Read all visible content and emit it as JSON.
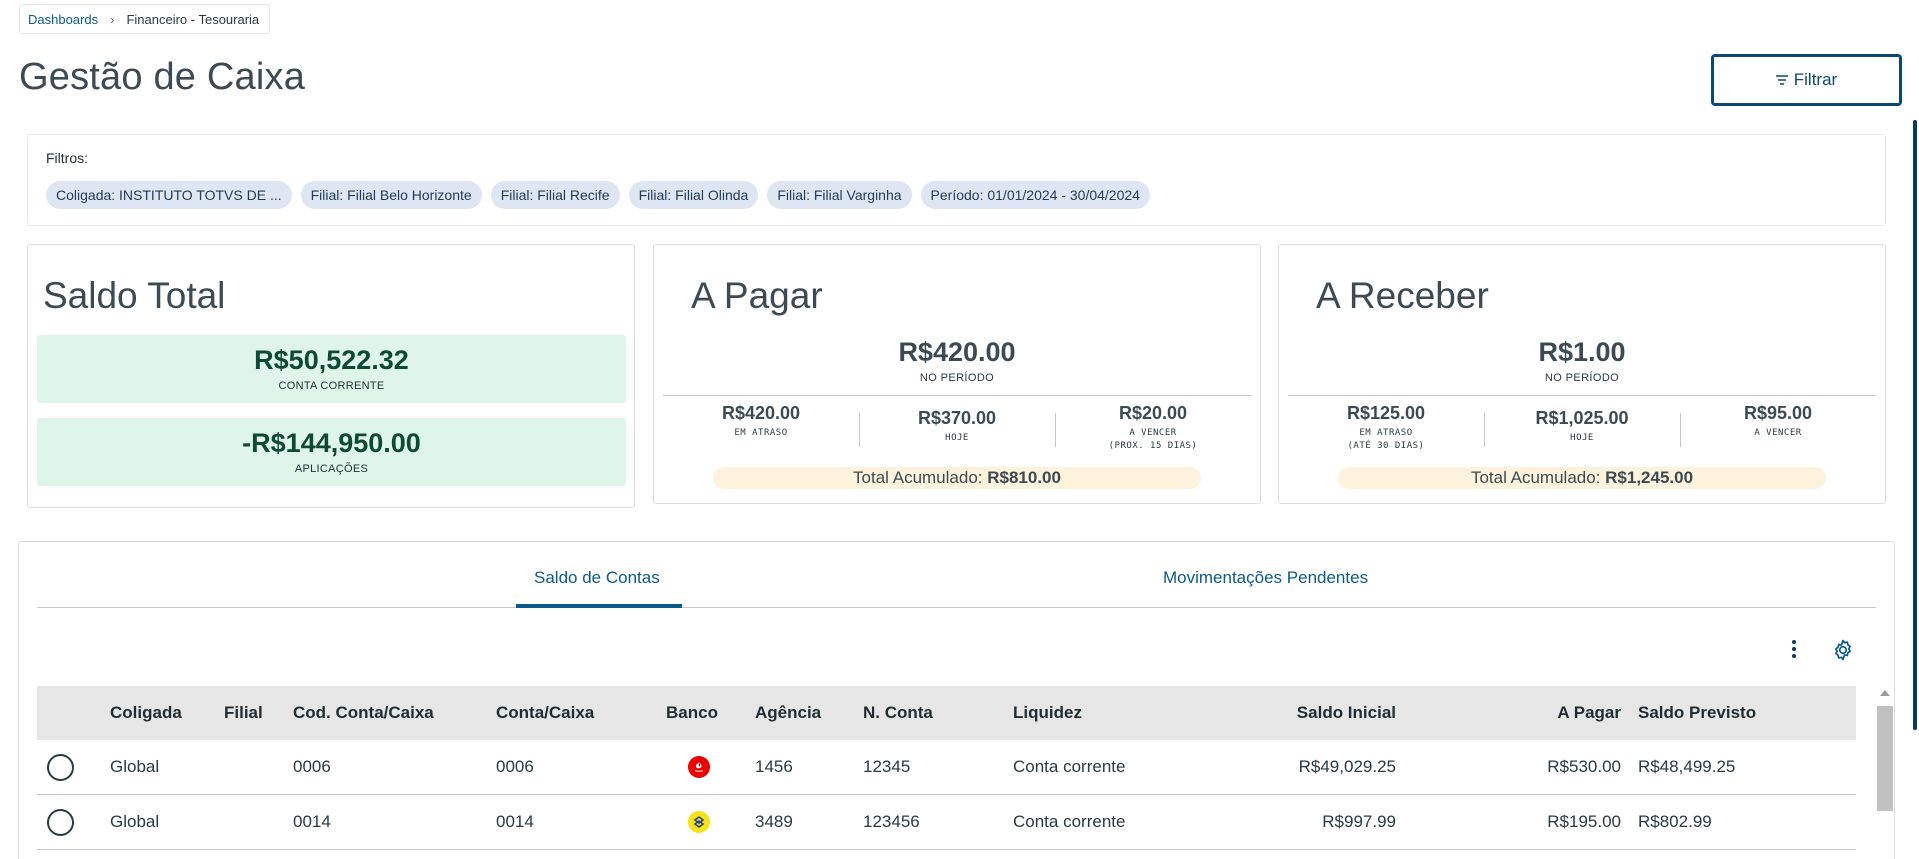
{
  "breadcrumb": {
    "link": "Dashboards",
    "current": "Financeiro - Tesouraria"
  },
  "page": {
    "title": "Gestão de Caixa",
    "filter_button": "Filtrar"
  },
  "filters": {
    "label": "Filtros:",
    "chips": [
      "Coligada: INSTITUTO TOTVS DE ...",
      "Filial: Filial Belo Horizonte",
      "Filial: Filial Recife",
      "Filial: Filial Olinda",
      "Filial: Filial Varginha",
      "Período: 01/01/2024 - 30/04/2024"
    ]
  },
  "saldo_total": {
    "title": "Saldo Total",
    "conta_corrente": {
      "value": "R$50,522.32",
      "label": "CONTA CORRENTE"
    },
    "aplicacoes": {
      "value": "-R$144,950.00",
      "label": "APLICAÇÕES"
    }
  },
  "a_pagar": {
    "title": "A Pagar",
    "amount": "R$420.00",
    "amount_label": "NO PERÍODO",
    "cols": [
      {
        "value": "R$420.00",
        "label": "EM ATRASO",
        "label2": ""
      },
      {
        "value": "R$370.00",
        "label": "HOJE",
        "label2": ""
      },
      {
        "value": "R$20.00",
        "label": "A VENCER",
        "label2": "(PROX. 15 DIAS)"
      }
    ],
    "accum_label": "Total Acumulado:",
    "accum_value": "R$810.00"
  },
  "a_receber": {
    "title": "A Receber",
    "amount": "R$1.00",
    "amount_label": "NO PERÍODO",
    "cols": [
      {
        "value": "R$125.00",
        "label": "EM ATRASO",
        "label2": "(ATÉ 30 DIAS)"
      },
      {
        "value": "R$1,025.00",
        "label": "HOJE",
        "label2": ""
      },
      {
        "value": "R$95.00",
        "label": "A VENCER",
        "label2": ""
      }
    ],
    "accum_label": "Total Acumulado:",
    "accum_value": "R$1,245.00"
  },
  "tabs": [
    {
      "label": "Saldo de Contas",
      "active": true
    },
    {
      "label": "Movimentações Pendentes",
      "active": false
    }
  ],
  "table": {
    "headers": {
      "coligada": "Coligada",
      "filial": "Filial",
      "cod": "Cod. Conta/Caixa",
      "conta": "Conta/Caixa",
      "banco": "Banco",
      "agencia": "Agência",
      "nconta": "N. Conta",
      "liquidez": "Liquidez",
      "saldo_inicial": "Saldo Inicial",
      "a_pagar": "A Pagar",
      "saldo_previsto": "Saldo Previsto"
    },
    "rows": [
      {
        "coligada": "Global",
        "filial": "",
        "cod": "0006",
        "conta": "0006",
        "banco_icon": "santander-logo-icon",
        "agencia": "1456",
        "nconta": "12345",
        "liquidez": "Conta corrente",
        "saldo_inicial": "R$49,029.25",
        "a_pagar": "R$530.00",
        "saldo_previsto": "R$48,499.25"
      },
      {
        "coligada": "Global",
        "filial": "",
        "cod": "0014",
        "conta": "0014",
        "banco_icon": "banco-do-brasil-logo-icon",
        "agencia": "3489",
        "nconta": "123456",
        "liquidez": "Conta corrente",
        "saldo_inicial": "R$997.99",
        "a_pagar": "R$195.00",
        "saldo_previsto": "R$802.99"
      }
    ]
  },
  "colors": {
    "primary": "#0c5a8c",
    "saldo_box_bg": "#dff5ea",
    "chip_bg": "#dde6f2",
    "accum_bg": "#fdf3dc",
    "santander": "#ec0000",
    "banco_do_brasil": "#f6e11a"
  }
}
